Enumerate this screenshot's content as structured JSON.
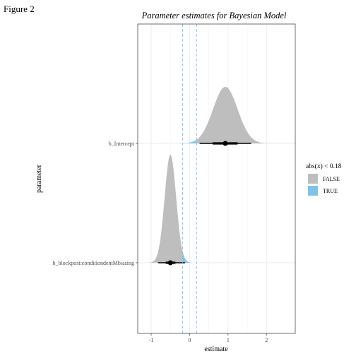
{
  "page": {
    "figure_label": "Figure 2"
  },
  "chart_data": {
    "type": "halfeye",
    "title": "Parameter estimates for Bayesian Model",
    "xlabel": "estimate",
    "ylabel": "parameter",
    "xlim": [
      -1.35,
      2.75
    ],
    "xticks": [
      -1,
      0,
      1,
      2
    ],
    "xtick_labels": [
      "-1",
      "0",
      "1",
      "2"
    ],
    "grid": true,
    "rope": {
      "low": -0.18,
      "high": 0.18,
      "color": "#7cb8e6"
    },
    "legend": {
      "title": "abs(x) < 0.18",
      "placement": "right",
      "entries": [
        {
          "label": "FALSE",
          "color": "#bebebe"
        },
        {
          "label": "TRUE",
          "color": "#7fc4e6"
        }
      ]
    },
    "parameters": [
      {
        "name": "b_Intercept",
        "point": 0.93,
        "interval_66": [
          0.6,
          1.25
        ],
        "interval_95": [
          0.26,
          1.6
        ],
        "mean": 0.93,
        "sd": 0.32
      },
      {
        "name": "b_blockpost:conditiondentMbiasing",
        "point": -0.5,
        "interval_66": [
          -0.62,
          -0.37
        ],
        "interval_95": [
          -0.82,
          -0.12
        ],
        "mean": -0.5,
        "sd": 0.15
      }
    ]
  }
}
